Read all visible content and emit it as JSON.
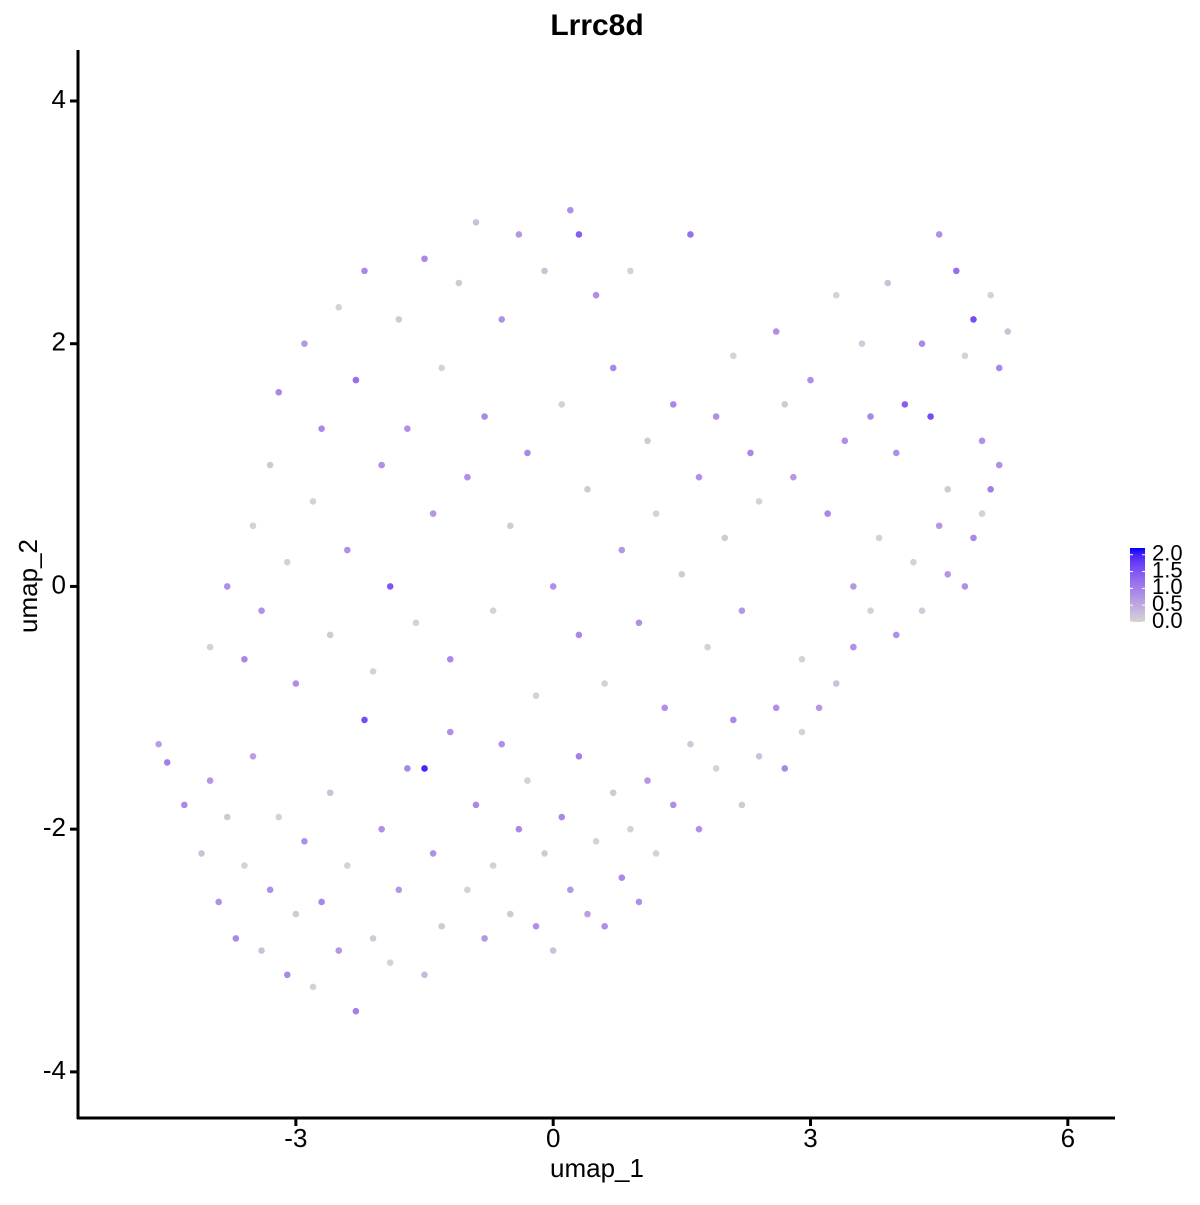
{
  "chart_data": {
    "type": "scatter",
    "title": "Lrrc8d",
    "x_label": "umap_1",
    "y_label": "umap_2",
    "xlim": [
      -5.54,
      6.55
    ],
    "ylim": [
      -4.38,
      4.42
    ],
    "xticks": [
      -3,
      0,
      3,
      6
    ],
    "yticks": [
      -4,
      -2,
      0,
      2,
      4
    ],
    "low_color": "#d3d3d3",
    "high_color": "#0000ff",
    "colorbar": {
      "lim": [
        0,
        2.2
      ],
      "ticks": [
        {
          "value": 0,
          "label": "0.0"
        },
        {
          "value": 0.5,
          "label": "0.5"
        },
        {
          "value": 1,
          "label": "1.0"
        },
        {
          "value": 1.5,
          "label": "1.5"
        },
        {
          "value": 2,
          "label": "2.0"
        }
      ]
    },
    "x": [
      -4.6,
      -4.5,
      -4.3,
      -4.1,
      -4.0,
      -3.9,
      -3.8,
      -3.7,
      -3.6,
      -3.5,
      -3.4,
      -3.3,
      -3.2,
      -3.1,
      -3.0,
      -2.9,
      -2.8,
      -2.7,
      -2.6,
      -2.5,
      -2.4,
      -2.3,
      -2.2,
      -2.1,
      -2.0,
      -1.9,
      -1.8,
      -1.7,
      -1.5,
      -1.5,
      -1.4,
      -1.3,
      -1.2,
      -1.0,
      -0.9,
      -0.8,
      -0.7,
      -0.6,
      -0.5,
      -0.4,
      -0.3,
      -0.2,
      -0.1,
      0.0,
      0.1,
      0.2,
      0.3,
      0.4,
      0.5,
      0.6,
      0.7,
      0.8,
      0.9,
      1.0,
      1.1,
      1.2,
      1.4,
      1.6,
      1.7,
      1.9,
      2.1,
      2.2,
      2.4,
      2.6,
      2.7,
      2.9,
      3.1,
      3.3,
      3.5,
      3.7,
      4.0,
      4.3,
      4.6,
      4.9,
      5.1,
      5.2,
      -4.0,
      -3.8,
      -3.6,
      -3.5,
      -3.4,
      -3.3,
      -3.2,
      -3.1,
      -3.0,
      -2.9,
      -2.8,
      -2.7,
      -2.6,
      -2.5,
      -2.4,
      -2.3,
      -2.2,
      -2.1,
      -2.0,
      -1.9,
      -1.8,
      -1.7,
      -1.6,
      -1.5,
      -1.4,
      -1.3,
      -1.2,
      -1.1,
      -1.0,
      -0.9,
      -0.8,
      -0.7,
      -0.6,
      -0.5,
      -0.4,
      -0.3,
      -0.2,
      -0.1,
      0.0,
      0.1,
      0.2,
      0.3,
      0.3,
      0.4,
      0.5,
      0.6,
      0.7,
      0.8,
      0.9,
      1.0,
      1.1,
      1.2,
      1.3,
      1.4,
      1.5,
      1.6,
      1.7,
      1.8,
      1.9,
      2.0,
      2.1,
      2.2,
      2.3,
      2.4,
      2.6,
      2.7,
      2.8,
      2.9,
      3.0,
      3.2,
      3.3,
      3.4,
      3.5,
      3.6,
      3.7,
      3.8,
      3.9,
      4.0,
      4.1,
      4.2,
      4.3,
      4.4,
      4.5,
      4.6,
      4.7,
      4.8,
      4.9,
      5.0,
      5.1,
      5.2,
      5.3,
      4.5,
      4.8,
      5.0
    ],
    "y": [
      -1.3,
      -1.45,
      -1.8,
      -2.2,
      -1.6,
      -2.6,
      -1.9,
      -2.9,
      -2.3,
      -1.4,
      -3.0,
      -2.5,
      -1.9,
      -3.2,
      -2.7,
      -2.1,
      -3.3,
      -2.6,
      -1.7,
      -3.0,
      -2.3,
      -3.5,
      -1.1,
      -2.9,
      -2.0,
      -3.1,
      -2.5,
      -1.5,
      -1.5,
      -3.2,
      -2.2,
      -2.8,
      -1.2,
      -2.5,
      -1.8,
      -2.9,
      -2.3,
      -1.3,
      -2.7,
      -2.0,
      -1.6,
      -2.8,
      -2.2,
      -3.0,
      -1.9,
      -2.5,
      -1.4,
      -2.7,
      -2.1,
      -2.8,
      -1.7,
      -2.4,
      -2.0,
      -2.6,
      -1.6,
      -2.2,
      -1.8,
      -1.3,
      -2.0,
      -1.5,
      -1.1,
      -1.8,
      -1.4,
      -1.0,
      -1.5,
      -1.2,
      -1.0,
      -0.8,
      -0.5,
      -0.2,
      -0.4,
      -0.2,
      0.1,
      0.4,
      0.8,
      1.0,
      -0.5,
      0.0,
      -0.6,
      0.5,
      -0.2,
      1.0,
      1.6,
      0.2,
      -0.8,
      2.0,
      0.7,
      1.3,
      -0.4,
      2.3,
      0.3,
      1.7,
      2.6,
      -0.7,
      1.0,
      0.0,
      2.2,
      1.3,
      -0.3,
      2.7,
      0.6,
      1.8,
      -0.6,
      2.5,
      0.9,
      3.0,
      1.4,
      -0.2,
      2.2,
      0.5,
      2.9,
      1.1,
      -0.9,
      2.6,
      0.0,
      1.5,
      3.1,
      -0.4,
      2.9,
      0.8,
      2.4,
      -0.8,
      1.8,
      0.3,
      2.6,
      -0.3,
      1.2,
      0.6,
      -1.0,
      1.5,
      0.1,
      2.9,
      0.9,
      -0.5,
      1.4,
      0.4,
      1.9,
      -0.2,
      1.1,
      0.7,
      2.1,
      1.5,
      0.9,
      -0.6,
      1.7,
      0.6,
      2.4,
      1.2,
      0.0,
      2.0,
      1.4,
      0.4,
      2.5,
      1.1,
      1.5,
      0.2,
      2.0,
      1.4,
      2.9,
      0.8,
      2.6,
      1.9,
      2.2,
      1.2,
      2.4,
      1.8,
      2.1,
      0.5,
      0.0,
      0.6
    ],
    "expression": [
      0.6,
      1.0,
      0.9,
      0.2,
      0.7,
      0.8,
      0.1,
      0.9,
      0.0,
      0.6,
      0.2,
      0.8,
      0.0,
      0.9,
      0.1,
      0.8,
      0.0,
      0.9,
      0.2,
      0.7,
      0.0,
      1.0,
      1.6,
      0.1,
      0.8,
      0.0,
      0.7,
      0.9,
      2.0,
      0.3,
      0.8,
      0.1,
      0.8,
      0.0,
      0.9,
      0.7,
      0.0,
      0.8,
      0.1,
      0.9,
      0.0,
      0.8,
      0.1,
      0.2,
      0.9,
      0.7,
      1.0,
      0.6,
      0.0,
      0.8,
      0.1,
      0.9,
      0.0,
      0.8,
      0.7,
      0.0,
      0.8,
      0.1,
      0.8,
      0.0,
      0.9,
      0.1,
      0.2,
      0.8,
      0.9,
      0.0,
      0.7,
      0.2,
      0.8,
      0.0,
      0.8,
      0.1,
      0.7,
      0.9,
      1.0,
      0.8,
      0.0,
      0.8,
      0.9,
      0.0,
      0.8,
      0.1,
      0.9,
      0.0,
      0.8,
      0.7,
      0.0,
      0.9,
      0.1,
      0.0,
      0.8,
      1.2,
      0.9,
      0.0,
      0.8,
      1.5,
      0.1,
      0.8,
      0.0,
      0.9,
      0.7,
      0.0,
      0.9,
      0.1,
      0.8,
      0.2,
      0.9,
      0.0,
      0.8,
      0.1,
      0.7,
      0.9,
      0.0,
      0.2,
      0.8,
      0.0,
      0.8,
      0.9,
      1.4,
      0.1,
      0.8,
      0.0,
      0.9,
      0.7,
      0.0,
      0.8,
      0.1,
      0.0,
      0.8,
      0.9,
      0.1,
      1.2,
      0.8,
      0.0,
      0.8,
      0.1,
      0.0,
      0.7,
      0.9,
      0.0,
      0.8,
      0.1,
      0.7,
      0.0,
      0.8,
      0.9,
      0.0,
      0.8,
      0.7,
      0.1,
      0.9,
      0.0,
      0.2,
      0.8,
      1.4,
      0.0,
      0.9,
      1.6,
      0.8,
      0.1,
      1.2,
      0.0,
      1.6,
      0.8,
      0.0,
      0.9,
      0.2,
      0.7,
      0.8,
      0.0
    ]
  }
}
